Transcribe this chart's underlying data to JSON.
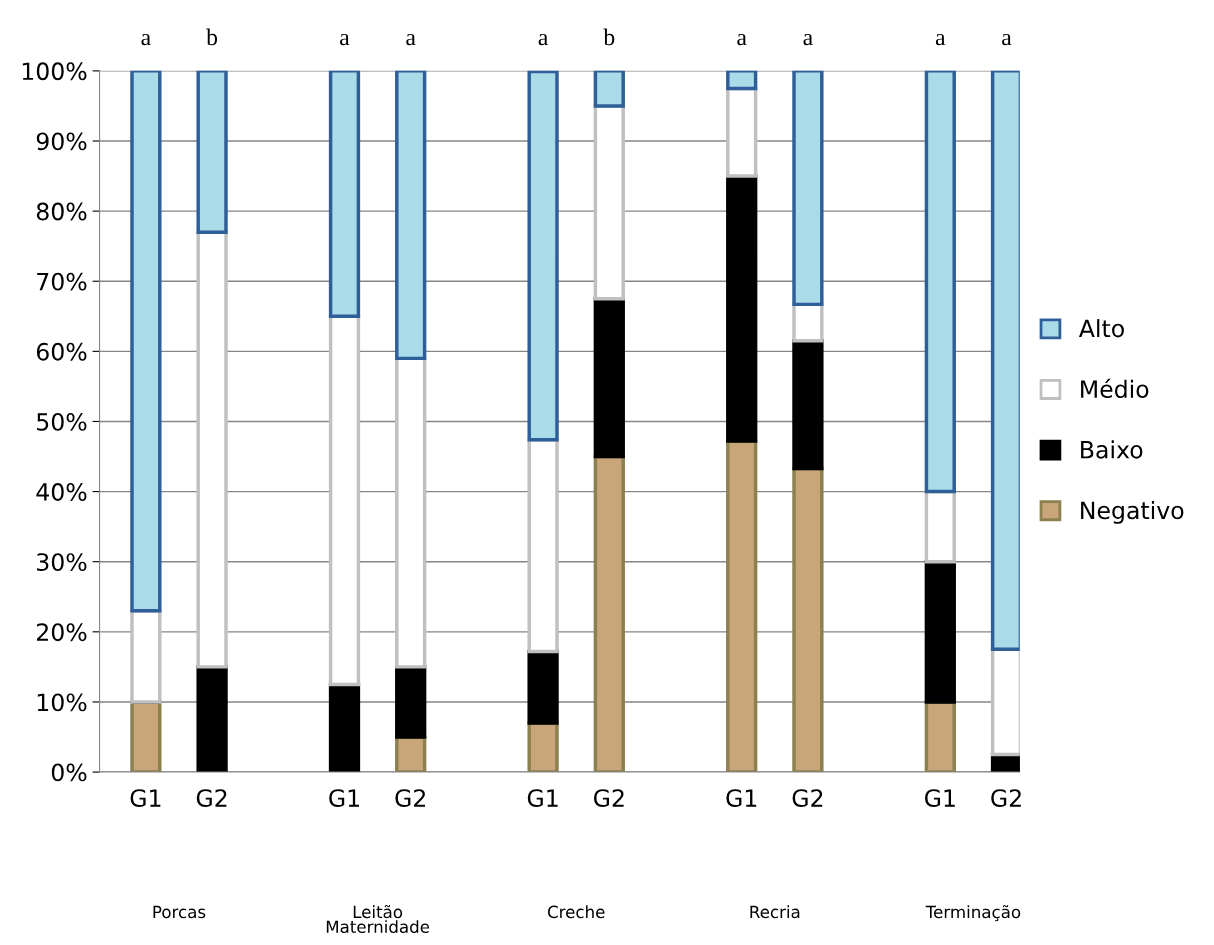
{
  "chart_data": {
    "type": "bar",
    "stacked": true,
    "categories": [
      "G1",
      "G2",
      null,
      "G1",
      "G2",
      null,
      "G1",
      "G2",
      null,
      "G1",
      "G2",
      null,
      "G1",
      "G2"
    ],
    "series": [
      {
        "name": "Negativo",
        "color": "#c9a57a",
        "values": [
          10,
          0,
          null,
          0,
          5,
          null,
          7,
          45,
          null,
          47.2,
          43.3,
          null,
          10,
          0
        ]
      },
      {
        "name": "Baixo",
        "color": "#000000",
        "values": [
          0,
          15,
          null,
          12.5,
          10,
          null,
          10.2,
          22.5,
          null,
          37.8,
          18.2,
          null,
          20,
          2.5
        ]
      },
      {
        "name": "Médio",
        "color": "#ffffff",
        "values": [
          13,
          62,
          null,
          52.5,
          44,
          null,
          30.2,
          27.5,
          null,
          12.5,
          5.2,
          null,
          10,
          15
        ]
      },
      {
        "name": "Alto",
        "color": "#a9dbe8",
        "values": [
          77,
          23,
          null,
          35,
          41,
          null,
          52.5,
          5,
          null,
          2.5,
          33.3,
          null,
          60,
          82.5
        ]
      }
    ],
    "ylim": [
      0,
      100
    ],
    "yticks": [
      {
        "value": 0,
        "label": "0%"
      },
      {
        "value": 10,
        "label": "10%"
      },
      {
        "value": 20,
        "label": "20%"
      },
      {
        "value": 30,
        "label": "30%"
      },
      {
        "value": 40,
        "label": "40%"
      },
      {
        "value": 50,
        "label": "50%"
      },
      {
        "value": 60,
        "label": "60%"
      },
      {
        "value": 70,
        "label": "70%"
      },
      {
        "value": 80,
        "label": "80%"
      },
      {
        "value": 90,
        "label": "90%"
      },
      {
        "value": 100,
        "label": "100%"
      }
    ],
    "grid": "y",
    "legend": "right",
    "annotations": [
      "a",
      "b",
      "a",
      "a",
      "a",
      "b",
      "a",
      "a",
      "a",
      "a",
      "Porcas",
      "Leitão\nMaternidade",
      "Creche",
      "Recria",
      "Terminação"
    ]
  }
}
